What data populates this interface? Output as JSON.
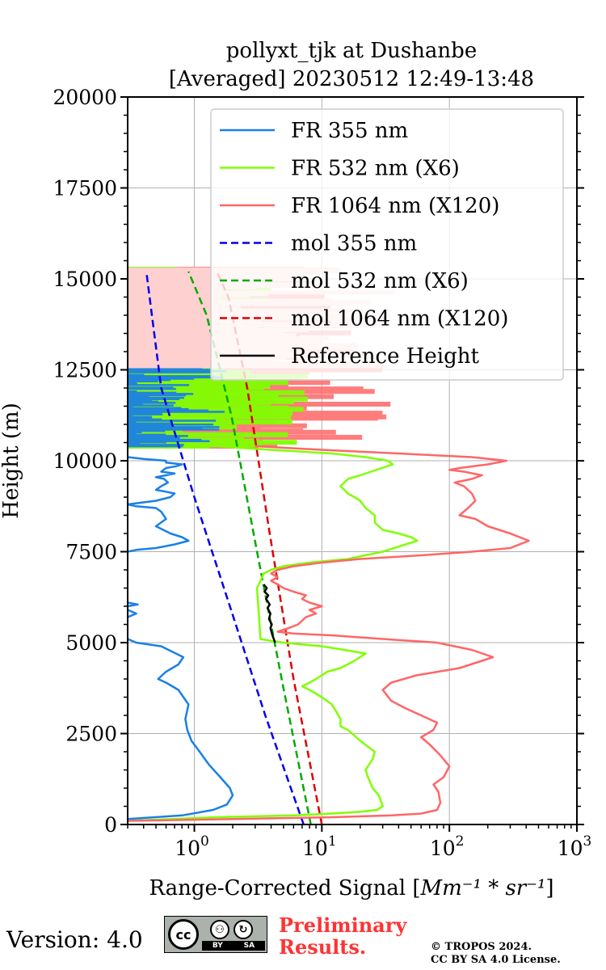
{
  "chart_data": {
    "type": "line",
    "title_line1": "pollyxt_tjk at Dushanbe",
    "title_line2": "[Averaged] 20230512 12:49-13:48",
    "xlabel": "Range-Corrected Signal [Mm⁻¹ * sr⁻¹]",
    "ylabel": "Height (m)",
    "xscale": "log",
    "xlim": [
      0.3,
      1000
    ],
    "ylim": [
      0,
      20000
    ],
    "grid": true,
    "legend_position": "top-right",
    "x_ticks": [
      {
        "value": 1,
        "label": "10",
        "exp": "0"
      },
      {
        "value": 10,
        "label": "10",
        "exp": "1"
      },
      {
        "value": 100,
        "label": "10",
        "exp": "2"
      },
      {
        "value": 1000,
        "label": "10",
        "exp": "3"
      }
    ],
    "y_ticks": [
      {
        "value": 0,
        "label": "0"
      },
      {
        "value": 2500,
        "label": "2500"
      },
      {
        "value": 5000,
        "label": "5000"
      },
      {
        "value": 7500,
        "label": "7500"
      },
      {
        "value": 10000,
        "label": "10000"
      },
      {
        "value": 12500,
        "label": "12500"
      },
      {
        "value": 15000,
        "label": "15000"
      },
      {
        "value": 17500,
        "label": "17500"
      },
      {
        "value": 20000,
        "label": "20000"
      }
    ],
    "series": [
      {
        "name": "FR 355 nm",
        "color": "#1a80e6",
        "dash": "solid",
        "x": [
          0.3,
          0.8,
          1.4,
          1.8,
          2.0,
          1.9,
          1.6,
          1.3,
          1.1,
          0.95,
          0.88,
          0.85,
          0.9,
          0.75,
          0.6,
          0.52,
          0.6,
          0.75,
          0.82,
          0.55,
          0.35,
          0.3,
          null,
          0.3,
          0.35,
          0.5,
          0.7,
          0.9,
          0.8,
          0.65,
          0.5,
          0.6,
          0.55,
          0.5,
          0.35,
          0.3,
          null,
          0.3,
          0.35,
          0.3,
          null,
          0.3,
          0.36,
          0.3,
          null,
          0.3,
          0.5,
          0.65,
          0.7,
          0.6,
          0.5,
          0.55,
          0.62,
          0.58,
          0.5,
          0.6,
          0.7,
          0.55,
          0.6,
          0.72,
          0.8,
          0.6,
          0.6,
          0.4,
          0.3
        ],
        "y": [
          150,
          250,
          400,
          550,
          800,
          1000,
          1300,
          1650,
          2000,
          2300,
          2600,
          2900,
          3300,
          3700,
          3900,
          4000,
          4200,
          4400,
          4600,
          4900,
          5000,
          5100,
          null,
          7500,
          7550,
          7600,
          7700,
          7800,
          7900,
          8000,
          8200,
          8400,
          8600,
          8700,
          8750,
          8800,
          null,
          5700,
          5800,
          5900,
          null,
          6000,
          6050,
          6100,
          null,
          8800,
          8900,
          9000,
          9100,
          9150,
          9200,
          9300,
          9400,
          9500,
          9550,
          9600,
          9650,
          9700,
          9800,
          9850,
          9900,
          9950,
          10000,
          10050,
          10100
        ]
      },
      {
        "name": "FR 532 nm (X6)",
        "color": "#80ff00",
        "dash": "solid",
        "x": [
          0.3,
          1.5,
          6,
          12,
          20,
          27,
          30,
          28,
          25,
          23,
          22,
          25,
          26,
          20,
          16,
          14,
          14,
          13,
          12,
          10,
          8,
          7,
          8,
          9,
          10,
          11,
          14,
          18,
          22,
          15,
          10,
          7,
          5,
          4,
          3.3,
          3.1,
          3.3,
          3.5,
          4,
          5,
          8,
          16,
          30,
          56,
          50,
          40,
          30,
          26,
          26,
          22,
          20,
          18,
          16,
          15,
          14,
          15,
          16,
          20,
          36,
          33,
          22,
          12,
          4,
          1.5
        ],
        "y": [
          100,
          200,
          250,
          300,
          350,
          400,
          500,
          800,
          1000,
          1300,
          1500,
          1800,
          2000,
          2300,
          2600,
          2700,
          2900,
          3100,
          3300,
          3500,
          3700,
          3800,
          3900,
          4000,
          4100,
          4200,
          4300,
          4500,
          4700,
          4800,
          4900,
          4950,
          5000,
          5050,
          5100,
          6500,
          6700,
          6900,
          7000,
          7100,
          7200,
          7300,
          7500,
          7800,
          7900,
          8000,
          8100,
          8300,
          8500,
          8700,
          8900,
          9000,
          9100,
          9200,
          9300,
          9400,
          9500,
          9600,
          9900,
          10000,
          10100,
          10200,
          10300,
          10400
        ]
      },
      {
        "name": "FR 1064 nm (X120)",
        "color": "#ff6666",
        "dash": "solid",
        "x": [
          0.3,
          2,
          12,
          35,
          60,
          80,
          85,
          82,
          75,
          90,
          100,
          85,
          70,
          60,
          75,
          80,
          60,
          45,
          35,
          30,
          35,
          55,
          120,
          220,
          150,
          80,
          30,
          12,
          6,
          4.5,
          5.5,
          6.5,
          7.5,
          9,
          8,
          10,
          8,
          7,
          7.5,
          6,
          5,
          4.5,
          4,
          4.5,
          4,
          4.5,
          6,
          10,
          20,
          60,
          150,
          300,
          420,
          300,
          200,
          160,
          120,
          140,
          160,
          150,
          130,
          110,
          150,
          180,
          130,
          100,
          120,
          200,
          280,
          150,
          40,
          10,
          3
        ],
        "y": [
          100,
          150,
          200,
          250,
          300,
          400,
          600,
          900,
          1100,
          1300,
          1600,
          1900,
          2200,
          2400,
          2600,
          2800,
          3000,
          3200,
          3400,
          3700,
          3900,
          4100,
          4300,
          4600,
          4800,
          5000,
          5100,
          5200,
          5250,
          5300,
          5400,
          5500,
          5700,
          5800,
          5900,
          6000,
          6100,
          6200,
          6300,
          6400,
          6500,
          6600,
          6700,
          6800,
          6900,
          7000,
          7100,
          7200,
          7300,
          7400,
          7500,
          7600,
          7800,
          8000,
          8200,
          8400,
          8500,
          8700,
          8900,
          9100,
          9300,
          9400,
          9500,
          9600,
          9700,
          9750,
          9800,
          9900,
          10000,
          10100,
          10200,
          10300,
          10400
        ]
      },
      {
        "name": "mol 355 nm",
        "color": "#0000ee",
        "dash": "dashed",
        "x": [
          7.2,
          3.6,
          1.9,
          1.0,
          0.55,
          0.42
        ],
        "y": [
          0,
          3000,
          6000,
          9000,
          12000,
          15200
        ]
      },
      {
        "name": "mol 532 nm (X6)",
        "color": "#00aa00",
        "dash": "dashed",
        "x": [
          8.2,
          5.0,
          3.1,
          1.95,
          1.25,
          0.9
        ],
        "y": [
          0,
          3750,
          7500,
          11250,
          14000,
          15200
        ]
      },
      {
        "name": "mol 1064 nm (X120)",
        "color": "#dd0000",
        "dash": "dashed",
        "x": [
          10.0,
          6.0,
          3.9,
          2.6,
          1.85,
          1.5
        ],
        "y": [
          0,
          4000,
          8000,
          12000,
          14500,
          15200
        ]
      },
      {
        "name": "Reference Height",
        "color": "#000000",
        "dash": "solid",
        "x": [
          4.3,
          4.1,
          3.95,
          4.05,
          3.85,
          3.95,
          3.75,
          3.9,
          3.65,
          3.8,
          3.55,
          3.7,
          3.5
        ],
        "y": [
          5000,
          5200,
          5400,
          5500,
          5650,
          5800,
          5950,
          6050,
          6200,
          6300,
          6400,
          6500,
          6600
        ]
      }
    ],
    "noise_region": {
      "y_min": 10400,
      "y_max": 15300
    },
    "footer": {
      "version": "Version: 4.0",
      "prelim_line1": "Preliminary",
      "prelim_line2": "Results.",
      "copyright_line1": "© TROPOS 2024.",
      "copyright_line2": "CC BY SA 4.0 License.",
      "badge_cc": "cc",
      "badge_by": "BY",
      "badge_sa": "SA"
    }
  }
}
